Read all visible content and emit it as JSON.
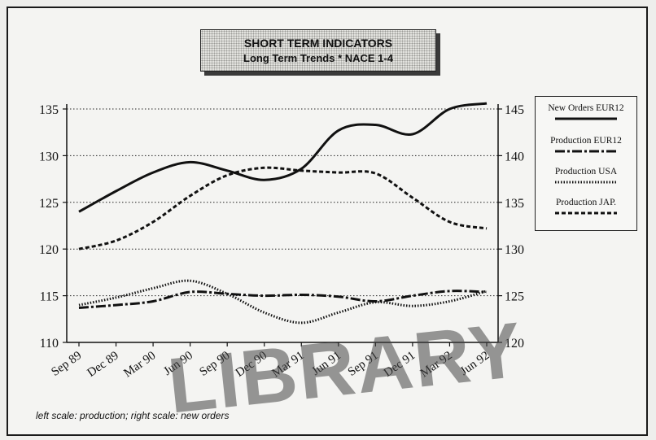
{
  "title_box": {
    "line1": "SHORT TERM INDICATORS",
    "line2": "Long Term Trends * NACE 1-4"
  },
  "legend": {
    "items": [
      {
        "label": "New Orders EUR12",
        "style": "solid"
      },
      {
        "label": "Production EUR12",
        "style": "dashdot"
      },
      {
        "label": "Production USA",
        "style": "dotted"
      },
      {
        "label": "Production JAP.",
        "style": "dashed"
      }
    ]
  },
  "footnote": "left scale: production; right scale: new orders",
  "stamp": {
    "text": "LIBRARY"
  },
  "chart_data": {
    "type": "line",
    "categories": [
      "Sep 89",
      "Dec 89",
      "Mar 90",
      "Jun 90",
      "Sep 90",
      "Dec 90",
      "Mar 91",
      "Jun 91",
      "Sep 91",
      "Dec 91",
      "Mar 92",
      "Jun 92"
    ],
    "left_axis": {
      "ylim": [
        110,
        135
      ],
      "ticks": [
        110,
        115,
        120,
        125,
        130,
        135
      ],
      "measures": "production"
    },
    "right_axis": {
      "ylim": [
        120,
        145
      ],
      "ticks": [
        120,
        125,
        130,
        135,
        140,
        145
      ],
      "measures": "new orders"
    },
    "grid": "horizontal dotted",
    "legend_position": "right",
    "series": [
      {
        "name": "New Orders EUR12",
        "axis": "right",
        "style": "solid",
        "values": [
          134,
          136.2,
          138.2,
          139.3,
          138.4,
          137.4,
          138.6,
          142.7,
          143.3,
          142.3,
          145,
          145.6
        ]
      },
      {
        "name": "Production EUR12",
        "axis": "left",
        "style": "dashdot",
        "values": [
          113.7,
          114,
          114.4,
          115.4,
          115.2,
          115,
          115.1,
          114.9,
          114.4,
          115,
          115.5,
          115.4
        ]
      },
      {
        "name": "Production USA",
        "axis": "left",
        "style": "dotted",
        "values": [
          114,
          114.8,
          115.8,
          116.6,
          115.2,
          113.2,
          112.1,
          113.2,
          114.3,
          113.9,
          114.4,
          115.5
        ]
      },
      {
        "name": "Production JAP.",
        "axis": "left",
        "style": "dashed",
        "values": [
          120,
          120.9,
          122.9,
          125.7,
          127.9,
          128.7,
          128.4,
          128.2,
          128.1,
          125.5,
          122.9,
          122.2
        ]
      }
    ]
  }
}
